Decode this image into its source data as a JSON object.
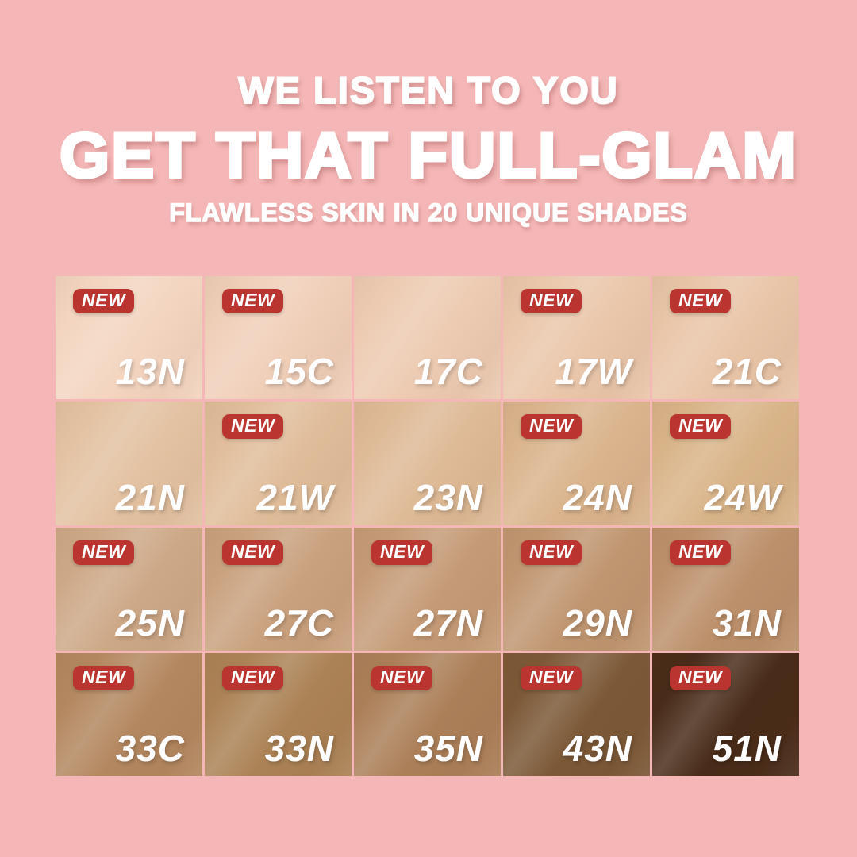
{
  "page": {
    "background_color": "#f4b6b6"
  },
  "header": {
    "line1": "WE LISTEN TO YOU",
    "line2": "GET THAT FULL-GLAM",
    "line3": "FLAWLESS SKIN IN 20 UNIQUE SHADES",
    "text_color": "#ffffff"
  },
  "badge": {
    "label": "NEW",
    "background": "#bb3530",
    "text_color": "#ffffff"
  },
  "shades": [
    {
      "code": "13N",
      "color": "#f3d5c0",
      "new": true
    },
    {
      "code": "15C",
      "color": "#f0cfb9",
      "new": true
    },
    {
      "code": "17C",
      "color": "#edcbb2",
      "new": false
    },
    {
      "code": "17W",
      "color": "#eac7ab",
      "new": true
    },
    {
      "code": "21C",
      "color": "#e9c5a8",
      "new": true
    },
    {
      "code": "21N",
      "color": "#e3c2a2",
      "new": false
    },
    {
      "code": "21W",
      "color": "#e0bd9a",
      "new": true
    },
    {
      "code": "23N",
      "color": "#deba96",
      "new": false
    },
    {
      "code": "24N",
      "color": "#dab48d",
      "new": true
    },
    {
      "code": "24W",
      "color": "#d9b489",
      "new": true
    },
    {
      "code": "25N",
      "color": "#cda887",
      "new": true
    },
    {
      "code": "27C",
      "color": "#c9a17e",
      "new": true
    },
    {
      "code": "27N",
      "color": "#c59b77",
      "new": true
    },
    {
      "code": "29N",
      "color": "#c09671",
      "new": true
    },
    {
      "code": "31N",
      "color": "#bc906b",
      "new": true
    },
    {
      "code": "33C",
      "color": "#b3875f",
      "new": true
    },
    {
      "code": "33N",
      "color": "#ab8255",
      "new": true
    },
    {
      "code": "35N",
      "color": "#ab7f58",
      "new": true
    },
    {
      "code": "43N",
      "color": "#7b5836",
      "new": true
    },
    {
      "code": "51N",
      "color": "#482b18",
      "new": true
    }
  ]
}
